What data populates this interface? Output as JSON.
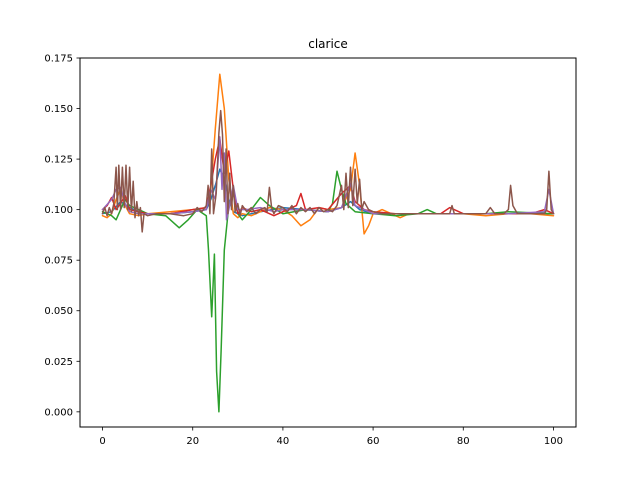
{
  "chart_data": {
    "type": "line",
    "title": "clarice",
    "xlabel": "",
    "ylabel": "",
    "xlim": [
      -5,
      105
    ],
    "ylim": [
      -0.0075,
      0.175
    ],
    "xticks": [
      0,
      20,
      40,
      60,
      80,
      100
    ],
    "xtick_labels": [
      "0",
      "20",
      "40",
      "60",
      "80",
      "100"
    ],
    "yticks": [
      0.0,
      0.025,
      0.05,
      0.075,
      0.1,
      0.125,
      0.15,
      0.175
    ],
    "ytick_labels": [
      "0.000",
      "0.025",
      "0.050",
      "0.075",
      "0.100",
      "0.125",
      "0.150",
      "0.175"
    ],
    "grid": false,
    "legend": "none",
    "series": [
      {
        "color": "#1f77b4",
        "points": [
          [
            0,
            0.098
          ],
          [
            2,
            0.099
          ],
          [
            4,
            0.104
          ],
          [
            6,
            0.101
          ],
          [
            8,
            0.099
          ],
          [
            10,
            0.098
          ],
          [
            15,
            0.098
          ],
          [
            20,
            0.099
          ],
          [
            23,
            0.1
          ],
          [
            24,
            0.105
          ],
          [
            25,
            0.112
          ],
          [
            26,
            0.12
          ],
          [
            27,
            0.115
          ],
          [
            28,
            0.105
          ],
          [
            29,
            0.099
          ],
          [
            31,
            0.097
          ],
          [
            35,
            0.099
          ],
          [
            40,
            0.101
          ],
          [
            45,
            0.1
          ],
          [
            50,
            0.099
          ],
          [
            53,
            0.101
          ],
          [
            55,
            0.104
          ],
          [
            57,
            0.1
          ],
          [
            60,
            0.098
          ],
          [
            70,
            0.098
          ],
          [
            80,
            0.098
          ],
          [
            90,
            0.098
          ],
          [
            100,
            0.098
          ]
        ]
      },
      {
        "color": "#ff7f0e",
        "points": [
          [
            0,
            0.097
          ],
          [
            1,
            0.096
          ],
          [
            2,
            0.098
          ],
          [
            3,
            0.105
          ],
          [
            4,
            0.11
          ],
          [
            5,
            0.102
          ],
          [
            6,
            0.098
          ],
          [
            8,
            0.097
          ],
          [
            10,
            0.098
          ],
          [
            15,
            0.099
          ],
          [
            20,
            0.1
          ],
          [
            23,
            0.101
          ],
          [
            24,
            0.11
          ],
          [
            25,
            0.14
          ],
          [
            26,
            0.167
          ],
          [
            27,
            0.15
          ],
          [
            28,
            0.115
          ],
          [
            29,
            0.098
          ],
          [
            30,
            0.096
          ],
          [
            31,
            0.098
          ],
          [
            33,
            0.097
          ],
          [
            35,
            0.099
          ],
          [
            37,
            0.101
          ],
          [
            40,
            0.1
          ],
          [
            42,
            0.097
          ],
          [
            44,
            0.092
          ],
          [
            46,
            0.095
          ],
          [
            48,
            0.101
          ],
          [
            50,
            0.1
          ],
          [
            53,
            0.101
          ],
          [
            55,
            0.11
          ],
          [
            56,
            0.128
          ],
          [
            57,
            0.112
          ],
          [
            58,
            0.088
          ],
          [
            59,
            0.092
          ],
          [
            60,
            0.098
          ],
          [
            62,
            0.1
          ],
          [
            64,
            0.098
          ],
          [
            66,
            0.096
          ],
          [
            68,
            0.098
          ],
          [
            70,
            0.098
          ],
          [
            80,
            0.098
          ],
          [
            85,
            0.097
          ],
          [
            90,
            0.098
          ],
          [
            95,
            0.098
          ],
          [
            100,
            0.097
          ]
        ]
      },
      {
        "color": "#2ca02c",
        "points": [
          [
            0,
            0.099
          ],
          [
            2,
            0.097
          ],
          [
            3,
            0.095
          ],
          [
            4,
            0.1
          ],
          [
            5,
            0.105
          ],
          [
            6,
            0.102
          ],
          [
            8,
            0.1
          ],
          [
            10,
            0.098
          ],
          [
            14,
            0.097
          ],
          [
            17,
            0.091
          ],
          [
            19,
            0.095
          ],
          [
            21,
            0.1
          ],
          [
            23,
            0.097
          ],
          [
            23.5,
            0.08
          ],
          [
            24.2,
            0.047
          ],
          [
            24.8,
            0.078
          ],
          [
            25.3,
            0.02
          ],
          [
            25.8,
            0.0
          ],
          [
            26.3,
            0.03
          ],
          [
            27,
            0.08
          ],
          [
            28,
            0.102
          ],
          [
            29,
            0.108
          ],
          [
            30,
            0.098
          ],
          [
            31,
            0.095
          ],
          [
            33,
            0.1
          ],
          [
            35,
            0.106
          ],
          [
            37,
            0.102
          ],
          [
            40,
            0.098
          ],
          [
            45,
            0.1
          ],
          [
            50,
            0.099
          ],
          [
            51,
            0.103
          ],
          [
            52,
            0.119
          ],
          [
            53,
            0.11
          ],
          [
            54,
            0.103
          ],
          [
            56,
            0.099
          ],
          [
            60,
            0.098
          ],
          [
            65,
            0.097
          ],
          [
            70,
            0.098
          ],
          [
            72,
            0.1
          ],
          [
            74,
            0.098
          ],
          [
            80,
            0.098
          ],
          [
            85,
            0.098
          ],
          [
            90,
            0.099
          ],
          [
            100,
            0.098
          ]
        ]
      },
      {
        "color": "#d62728",
        "points": [
          [
            0,
            0.1
          ],
          [
            1,
            0.102
          ],
          [
            2,
            0.106
          ],
          [
            3,
            0.1
          ],
          [
            4,
            0.103
          ],
          [
            5,
            0.107
          ],
          [
            6,
            0.1
          ],
          [
            8,
            0.099
          ],
          [
            10,
            0.098
          ],
          [
            15,
            0.098
          ],
          [
            20,
            0.1
          ],
          [
            23,
            0.101
          ],
          [
            24,
            0.112
          ],
          [
            25,
            0.125
          ],
          [
            26,
            0.135
          ],
          [
            27,
            0.118
          ],
          [
            28,
            0.129
          ],
          [
            29,
            0.11
          ],
          [
            30,
            0.098
          ],
          [
            31,
            0.101
          ],
          [
            33,
            0.099
          ],
          [
            35,
            0.1
          ],
          [
            38,
            0.097
          ],
          [
            40,
            0.099
          ],
          [
            43,
            0.102
          ],
          [
            44,
            0.108
          ],
          [
            45,
            0.1
          ],
          [
            48,
            0.101
          ],
          [
            50,
            0.1
          ],
          [
            53,
            0.108
          ],
          [
            55,
            0.112
          ],
          [
            56,
            0.104
          ],
          [
            58,
            0.1
          ],
          [
            60,
            0.099
          ],
          [
            65,
            0.098
          ],
          [
            70,
            0.098
          ],
          [
            75,
            0.098
          ],
          [
            77,
            0.101
          ],
          [
            80,
            0.098
          ],
          [
            85,
            0.098
          ],
          [
            90,
            0.098
          ],
          [
            95,
            0.098
          ],
          [
            98,
            0.1
          ],
          [
            100,
            0.098
          ]
        ]
      },
      {
        "color": "#9467bd",
        "points": [
          [
            0,
            0.1
          ],
          [
            2,
            0.105
          ],
          [
            3,
            0.11
          ],
          [
            4,
            0.111
          ],
          [
            5,
            0.103
          ],
          [
            6,
            0.099
          ],
          [
            8,
            0.098
          ],
          [
            10,
            0.098
          ],
          [
            15,
            0.098
          ],
          [
            20,
            0.099
          ],
          [
            23,
            0.1
          ],
          [
            24,
            0.11
          ],
          [
            25,
            0.105
          ],
          [
            25.5,
            0.12
          ],
          [
            26,
            0.136
          ],
          [
            26.5,
            0.11
          ],
          [
            27,
            0.128
          ],
          [
            27.5,
            0.095
          ],
          [
            28,
            0.1
          ],
          [
            29,
            0.112
          ],
          [
            30,
            0.1
          ],
          [
            32,
            0.1
          ],
          [
            35,
            0.101
          ],
          [
            38,
            0.099
          ],
          [
            40,
            0.1
          ],
          [
            45,
            0.1
          ],
          [
            50,
            0.099
          ],
          [
            53,
            0.101
          ],
          [
            55,
            0.113
          ],
          [
            56,
            0.102
          ],
          [
            58,
            0.1
          ],
          [
            60,
            0.098
          ],
          [
            70,
            0.098
          ],
          [
            80,
            0.098
          ],
          [
            90,
            0.098
          ],
          [
            98,
            0.099
          ],
          [
            99,
            0.11
          ],
          [
            100,
            0.098
          ]
        ]
      },
      {
        "color": "#8c564b",
        "points": [
          [
            0,
            0.098
          ],
          [
            0.5,
            0.101
          ],
          [
            1,
            0.097
          ],
          [
            1.5,
            0.101
          ],
          [
            2,
            0.098
          ],
          [
            2.5,
            0.103
          ],
          [
            3,
            0.121
          ],
          [
            3.3,
            0.1
          ],
          [
            3.6,
            0.122
          ],
          [
            4,
            0.1
          ],
          [
            4.4,
            0.121
          ],
          [
            4.8,
            0.101
          ],
          [
            5.2,
            0.122
          ],
          [
            5.6,
            0.1
          ],
          [
            6,
            0.121
          ],
          [
            6.4,
            0.099
          ],
          [
            6.8,
            0.114
          ],
          [
            7.2,
            0.096
          ],
          [
            7.6,
            0.104
          ],
          [
            8,
            0.097
          ],
          [
            8.4,
            0.101
          ],
          [
            8.8,
            0.089
          ],
          [
            9.2,
            0.098
          ],
          [
            10,
            0.097
          ],
          [
            12,
            0.098
          ],
          [
            15,
            0.098
          ],
          [
            18,
            0.097
          ],
          [
            20,
            0.098
          ],
          [
            21,
            0.101
          ],
          [
            22,
            0.099
          ],
          [
            23,
            0.102
          ],
          [
            23.4,
            0.112
          ],
          [
            23.8,
            0.098
          ],
          [
            24.2,
            0.13
          ],
          [
            24.6,
            0.098
          ],
          [
            25.2,
            0.108
          ],
          [
            25.8,
            0.138
          ],
          [
            26.2,
            0.149
          ],
          [
            26.6,
            0.137
          ],
          [
            27,
            0.104
          ],
          [
            27.4,
            0.13
          ],
          [
            27.8,
            0.098
          ],
          [
            28.2,
            0.118
          ],
          [
            28.6,
            0.1
          ],
          [
            29,
            0.112
          ],
          [
            29.4,
            0.099
          ],
          [
            30,
            0.103
          ],
          [
            30.5,
            0.097
          ],
          [
            31,
            0.102
          ],
          [
            32,
            0.099
          ],
          [
            33,
            0.101
          ],
          [
            34,
            0.098
          ],
          [
            35,
            0.1
          ],
          [
            36,
            0.101
          ],
          [
            36.5,
            0.099
          ],
          [
            37,
            0.111
          ],
          [
            37.5,
            0.101
          ],
          [
            38,
            0.098
          ],
          [
            39,
            0.102
          ],
          [
            40,
            0.101
          ],
          [
            41,
            0.099
          ],
          [
            42,
            0.102
          ],
          [
            43,
            0.098
          ],
          [
            44,
            0.101
          ],
          [
            45,
            0.099
          ],
          [
            46,
            0.101
          ],
          [
            47,
            0.098
          ],
          [
            48,
            0.101
          ],
          [
            49,
            0.099
          ],
          [
            50,
            0.1
          ],
          [
            51,
            0.099
          ],
          [
            52,
            0.102
          ],
          [
            53,
            0.112
          ],
          [
            53.5,
            0.1
          ],
          [
            54,
            0.118
          ],
          [
            54.5,
            0.101
          ],
          [
            55,
            0.121
          ],
          [
            55.5,
            0.102
          ],
          [
            56,
            0.12
          ],
          [
            56.5,
            0.103
          ],
          [
            57,
            0.115
          ],
          [
            57.5,
            0.1
          ],
          [
            58,
            0.104
          ],
          [
            59,
            0.1
          ],
          [
            60,
            0.099
          ],
          [
            62,
            0.098
          ],
          [
            65,
            0.098
          ],
          [
            70,
            0.098
          ],
          [
            75,
            0.098
          ],
          [
            77,
            0.098
          ],
          [
            77.5,
            0.102
          ],
          [
            78,
            0.098
          ],
          [
            80,
            0.098
          ],
          [
            85,
            0.098
          ],
          [
            86,
            0.101
          ],
          [
            87,
            0.098
          ],
          [
            89,
            0.098
          ],
          [
            90,
            0.1
          ],
          [
            90.5,
            0.112
          ],
          [
            91,
            0.102
          ],
          [
            92,
            0.098
          ],
          [
            95,
            0.098
          ],
          [
            98,
            0.098
          ],
          [
            98.5,
            0.1
          ],
          [
            99,
            0.119
          ],
          [
            99.5,
            0.1
          ],
          [
            100,
            0.098
          ]
        ]
      }
    ]
  }
}
